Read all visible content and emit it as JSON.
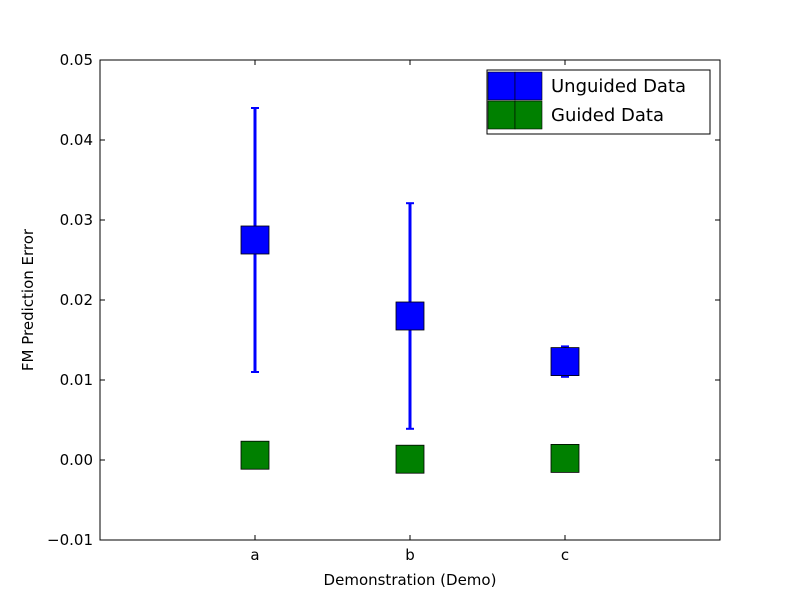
{
  "chart_data": {
    "type": "scatter",
    "title": "",
    "xlabel": "Demonstration (Demo)",
    "ylabel": "FM Prediction Error",
    "categories": [
      "a",
      "b",
      "c"
    ],
    "xlim": [
      -1,
      3
    ],
    "ylim": [
      -0.01,
      0.05
    ],
    "yticks": [
      "−0.01",
      "0.00",
      "0.01",
      "0.02",
      "0.03",
      "0.04",
      "0.05"
    ],
    "yticks_values": [
      -0.01,
      0.0,
      0.01,
      0.02,
      0.03,
      0.04,
      0.05
    ],
    "grid": false,
    "legend_position": "top-right",
    "marker": "square",
    "series": [
      {
        "name": "Unguided Data",
        "color": "#0000ff",
        "values": [
          0.0275,
          0.018,
          0.0123
        ],
        "errors": [
          0.0165,
          0.0141,
          0.0019
        ]
      },
      {
        "name": "Guided Data",
        "color": "#008000",
        "values": [
          0.0006,
          0.0001,
          0.0002
        ],
        "errors": [
          0.0,
          0.0,
          0.0
        ]
      }
    ]
  }
}
